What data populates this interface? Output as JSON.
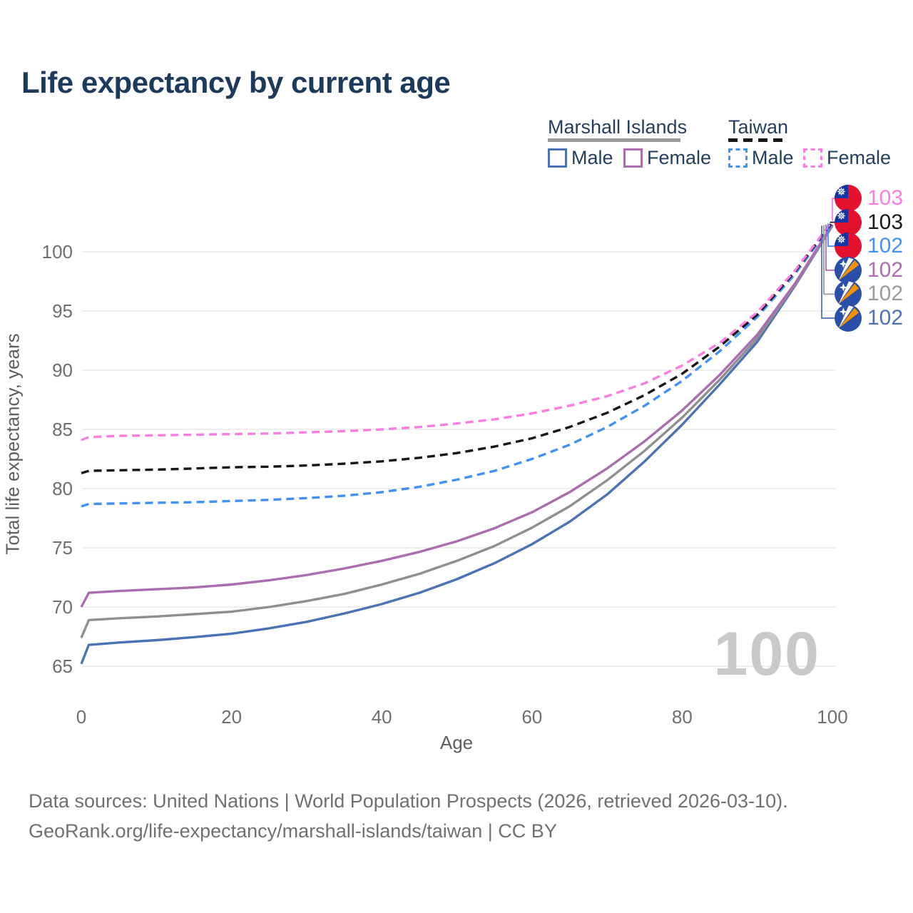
{
  "title": "Life expectancy by current age",
  "legend": {
    "marshall_islands": {
      "label": "Marshall Islands",
      "male": "Male",
      "female": "Female"
    },
    "taiwan": {
      "label": "Taiwan",
      "male": "Male",
      "female": "Female"
    }
  },
  "colors": {
    "mi_male": "#4a73b5",
    "mi_female": "#ab6cb0",
    "mi_combined": "#8f8f8f",
    "tw_male": "#4192f5",
    "tw_female": "#fb7de2",
    "tw_combined": "#161616",
    "grid": "#e9e9e9",
    "title_text": "#1c3a5c",
    "tick_text": "#6e6e6e",
    "watermark": "#c9c9c9"
  },
  "watermark": "100",
  "footer": {
    "line1": "Data sources: United Nations | World Population Prospects (2026, retrieved 2026-03-10).",
    "line2": "GeoRank.org/life-expectancy/marshall-islands/taiwan | CC BY"
  },
  "chart_data": {
    "type": "line",
    "title": "Life expectancy by current age",
    "xlabel": "Age",
    "ylabel": "Total life expectancy, years",
    "xlim": [
      0,
      100
    ],
    "ylim": [
      63,
      104
    ],
    "x_ticks": [
      0,
      20,
      40,
      60,
      80,
      100
    ],
    "y_ticks": [
      65,
      70,
      75,
      80,
      85,
      90,
      95,
      100
    ],
    "grid": true,
    "legend_position": "top-right",
    "x": [
      0,
      1,
      5,
      10,
      15,
      20,
      25,
      30,
      35,
      40,
      45,
      50,
      55,
      60,
      65,
      70,
      75,
      80,
      85,
      90,
      95,
      100
    ],
    "series": [
      {
        "name": "Marshall Islands Male",
        "country": "Marshall Islands",
        "sex": "male",
        "color": "#4a73b5",
        "dash": false,
        "values": [
          65.2,
          66.8,
          67.0,
          67.2,
          67.45,
          67.75,
          68.2,
          68.75,
          69.45,
          70.25,
          71.2,
          72.35,
          73.7,
          75.3,
          77.2,
          79.5,
          82.3,
          85.4,
          88.8,
          92.4,
          97.1,
          102.2
        ]
      },
      {
        "name": "Marshall Islands Combined",
        "country": "Marshall Islands",
        "sex": "combined",
        "color": "#8f8f8f",
        "dash": false,
        "values": [
          67.4,
          68.9,
          69.05,
          69.2,
          69.4,
          69.6,
          70.0,
          70.5,
          71.1,
          71.9,
          72.8,
          73.9,
          75.15,
          76.7,
          78.5,
          80.7,
          83.2,
          86.0,
          89.2,
          92.7,
          97.2,
          102.25
        ]
      },
      {
        "name": "Marshall Islands Female",
        "country": "Marshall Islands",
        "sex": "female",
        "color": "#ab6cb0",
        "dash": false,
        "values": [
          70.0,
          71.2,
          71.35,
          71.5,
          71.65,
          71.9,
          72.25,
          72.7,
          73.25,
          73.9,
          74.65,
          75.55,
          76.65,
          78.0,
          79.7,
          81.7,
          84.0,
          86.6,
          89.6,
          93.0,
          97.3,
          102.3
        ]
      },
      {
        "name": "Taiwan Male",
        "country": "Taiwan",
        "sex": "male",
        "color": "#4192f5",
        "dash": true,
        "values": [
          78.5,
          78.7,
          78.75,
          78.8,
          78.85,
          78.95,
          79.05,
          79.2,
          79.4,
          79.7,
          80.15,
          80.75,
          81.5,
          82.5,
          83.7,
          85.2,
          87.0,
          89.1,
          91.6,
          94.5,
          98.1,
          102.4
        ]
      },
      {
        "name": "Taiwan Combined",
        "country": "Taiwan",
        "sex": "combined",
        "color": "#161616",
        "dash": true,
        "values": [
          81.3,
          81.5,
          81.55,
          81.6,
          81.7,
          81.8,
          81.85,
          81.95,
          82.1,
          82.3,
          82.6,
          83.0,
          83.55,
          84.25,
          85.2,
          86.4,
          87.9,
          89.7,
          92.0,
          94.7,
          98.3,
          102.5
        ]
      },
      {
        "name": "Taiwan Female",
        "country": "Taiwan",
        "sex": "female",
        "color": "#fb7de2",
        "dash": true,
        "values": [
          84.1,
          84.35,
          84.45,
          84.5,
          84.55,
          84.6,
          84.65,
          84.75,
          84.85,
          85.0,
          85.2,
          85.5,
          85.85,
          86.35,
          87.0,
          87.8,
          88.9,
          90.4,
          92.3,
          94.9,
          98.4,
          102.6
        ]
      }
    ],
    "end_labels": [
      {
        "text": "103",
        "flag": "taiwan",
        "color": "#fb7de2",
        "series": "Taiwan Female"
      },
      {
        "text": "103",
        "flag": "taiwan",
        "color": "#1a1a1a",
        "series": "Taiwan Combined"
      },
      {
        "text": "102",
        "flag": "taiwan",
        "color": "#4192f5",
        "series": "Taiwan Male"
      },
      {
        "text": "102",
        "flag": "marshall-islands",
        "color": "#ab6cb0",
        "series": "Marshall Islands Female"
      },
      {
        "text": "102",
        "flag": "marshall-islands",
        "color": "#9b9b9b",
        "series": "Marshall Islands Combined"
      },
      {
        "text": "102",
        "flag": "marshall-islands",
        "color": "#4a73b5",
        "series": "Marshall Islands Male"
      }
    ]
  }
}
